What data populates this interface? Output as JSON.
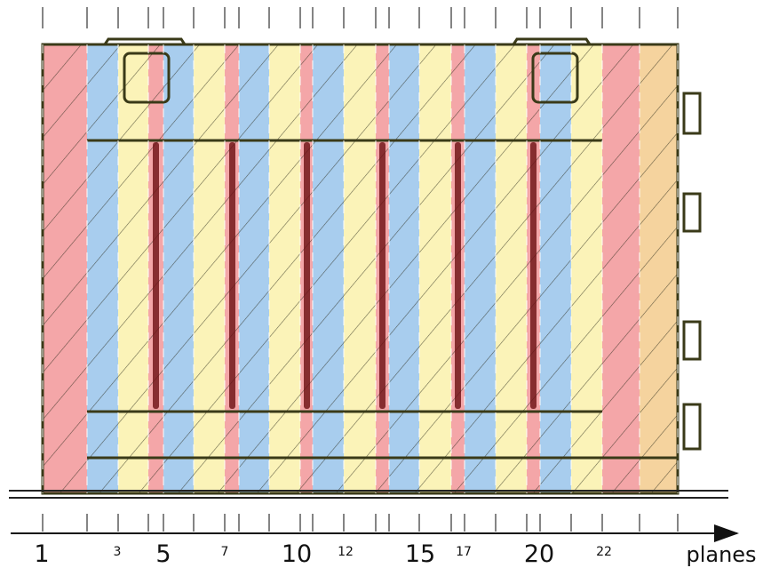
{
  "axis": {
    "labels": [
      "1",
      "3",
      "5",
      "7",
      "10",
      "12",
      "15",
      "17",
      "20",
      "22"
    ],
    "title": "planes"
  }
}
